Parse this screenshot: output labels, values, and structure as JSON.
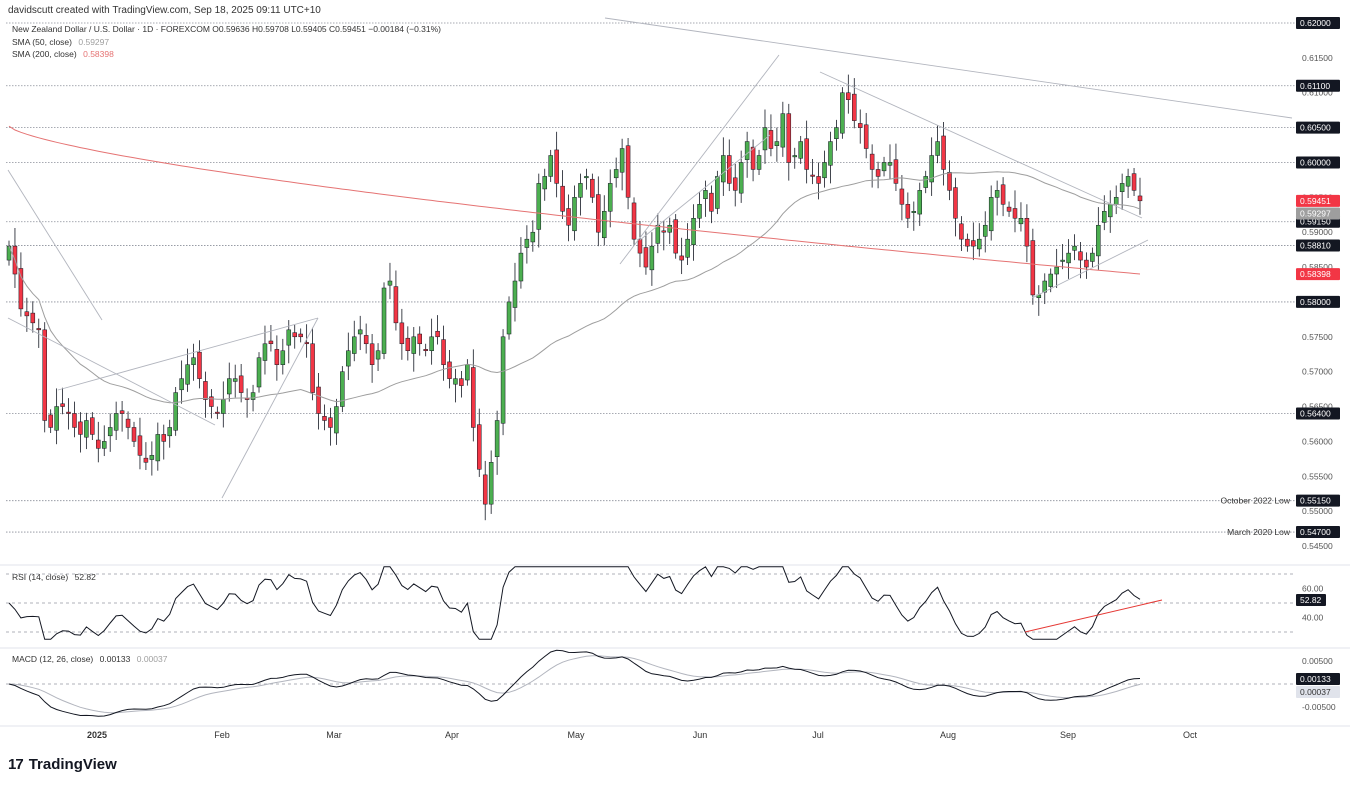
{
  "header": {
    "attribution": "davidscutt created with TradingView.com, Sep 18, 2025 09:11 UTC+10"
  },
  "legend": {
    "symbol_line": "New Zealand Dollar / U.S. Dollar · 1D · FOREXCOM  O0.59636  H0.59708  L0.59405  C0.59451  −0.00184 (−0.31%)",
    "sma50_label": "SMA (50, close)",
    "sma50_value": "0.59297",
    "sma200_label": "SMA (200, close)",
    "sma200_value": "0.58398",
    "rsi_label": "RSI (14, close)",
    "rsi_value": "52.82",
    "macd_label": "MACD (12, 26, close)",
    "macd_value": "0.00133",
    "signal_value": "0.00037"
  },
  "branding": {
    "logo_text": "TradingView",
    "logo_mark": "17"
  },
  "colors": {
    "up": "#4caf50",
    "down": "#f23645",
    "sma50": "#9e9e9e",
    "sma200": "#e57373",
    "trend": "#b2b5be",
    "rsi_div": "#e53935"
  },
  "chart_data": {
    "type": "candlestick",
    "symbol": "NZDUSD",
    "timeframe": "1D",
    "ylim": [
      0.542,
      0.6205
    ],
    "x_tick_labels": [
      "2025",
      "Feb",
      "Mar",
      "Apr",
      "May",
      "Jun",
      "Jul",
      "Aug",
      "Sep",
      "Oct"
    ],
    "y_tick_labels": [
      "0.62000",
      "0.61500",
      "0.61000",
      "0.60500",
      "0.60000",
      "0.59500",
      "0.59000",
      "0.58500",
      "0.58000",
      "0.57500",
      "0.57000",
      "0.56500",
      "0.56000",
      "0.55500",
      "0.55000",
      "0.54500"
    ],
    "levels": [
      {
        "price": 0.62,
        "label": ""
      },
      {
        "price": 0.611,
        "label": ""
      },
      {
        "price": 0.605,
        "label": ""
      },
      {
        "price": 0.6,
        "label": ""
      },
      {
        "price": 0.5915,
        "label": ""
      },
      {
        "price": 0.5881,
        "label": ""
      },
      {
        "price": 0.58,
        "label": ""
      },
      {
        "price": 0.564,
        "label": ""
      },
      {
        "price": 0.5515,
        "label": "October 2022 Low"
      },
      {
        "price": 0.547,
        "label": "March 2020 Low"
      }
    ],
    "price_tags": [
      {
        "value": "0.59451",
        "color": "#f23645"
      },
      {
        "value": "0.59297",
        "color": "#9e9e9e"
      },
      {
        "value": "0.58398",
        "color": "#f23645"
      }
    ],
    "closes": [
      0.588,
      0.584,
      0.579,
      0.578,
      0.577,
      0.576,
      0.563,
      0.562,
      0.565,
      0.565,
      0.564,
      0.562,
      0.561,
      0.563,
      0.561,
      0.559,
      0.56,
      0.562,
      0.564,
      0.564,
      0.562,
      0.56,
      0.558,
      0.557,
      0.558,
      0.561,
      0.56,
      0.562,
      0.567,
      0.569,
      0.571,
      0.572,
      0.569,
      0.566,
      0.565,
      0.564,
      0.566,
      0.569,
      0.569,
      0.567,
      0.566,
      0.567,
      0.572,
      0.574,
      0.574,
      0.571,
      0.573,
      0.576,
      0.575,
      0.575,
      0.574,
      0.567,
      0.564,
      0.563,
      0.562,
      0.565,
      0.57,
      0.573,
      0.575,
      0.576,
      0.574,
      0.571,
      0.573,
      0.582,
      0.583,
      0.577,
      0.574,
      0.573,
      0.575,
      0.574,
      0.573,
      0.575,
      0.575,
      0.571,
      0.569,
      0.569,
      0.568,
      0.571,
      0.562,
      0.556,
      0.551,
      0.557,
      0.563,
      0.575,
      0.58,
      0.583,
      0.587,
      0.589,
      0.59,
      0.597,
      0.598,
      0.601,
      0.597,
      0.593,
      0.591,
      0.595,
      0.597,
      0.598,
      0.595,
      0.59,
      0.593,
      0.597,
      0.599,
      0.602,
      0.595,
      0.589,
      0.587,
      0.585,
      0.588,
      0.591,
      0.59,
      0.591,
      0.587,
      0.586,
      0.589,
      0.592,
      0.594,
      0.596,
      0.593,
      0.598,
      0.601,
      0.597,
      0.596,
      0.6,
      0.603,
      0.599,
      0.601,
      0.605,
      0.602,
      0.603,
      0.607,
      0.6,
      0.601,
      0.603,
      0.599,
      0.598,
      0.597,
      0.6,
      0.603,
      0.605,
      0.61,
      0.609,
      0.606,
      0.605,
      0.602,
      0.599,
      0.598,
      0.6,
      0.6,
      0.597,
      0.594,
      0.592,
      0.593,
      0.596,
      0.598,
      0.601,
      0.603,
      0.599,
      0.596,
      0.592,
      0.589,
      0.588,
      0.588,
      0.589,
      0.591,
      0.595,
      0.596,
      0.594,
      0.593,
      0.592,
      0.592,
      0.588,
      0.581,
      0.581,
      0.583,
      0.584,
      0.585,
      0.586,
      0.587,
      0.588,
      0.586,
      0.585,
      0.587,
      0.591,
      0.593,
      0.594,
      0.595,
      0.597,
      0.598,
      0.596,
      0.5945
    ]
  }
}
